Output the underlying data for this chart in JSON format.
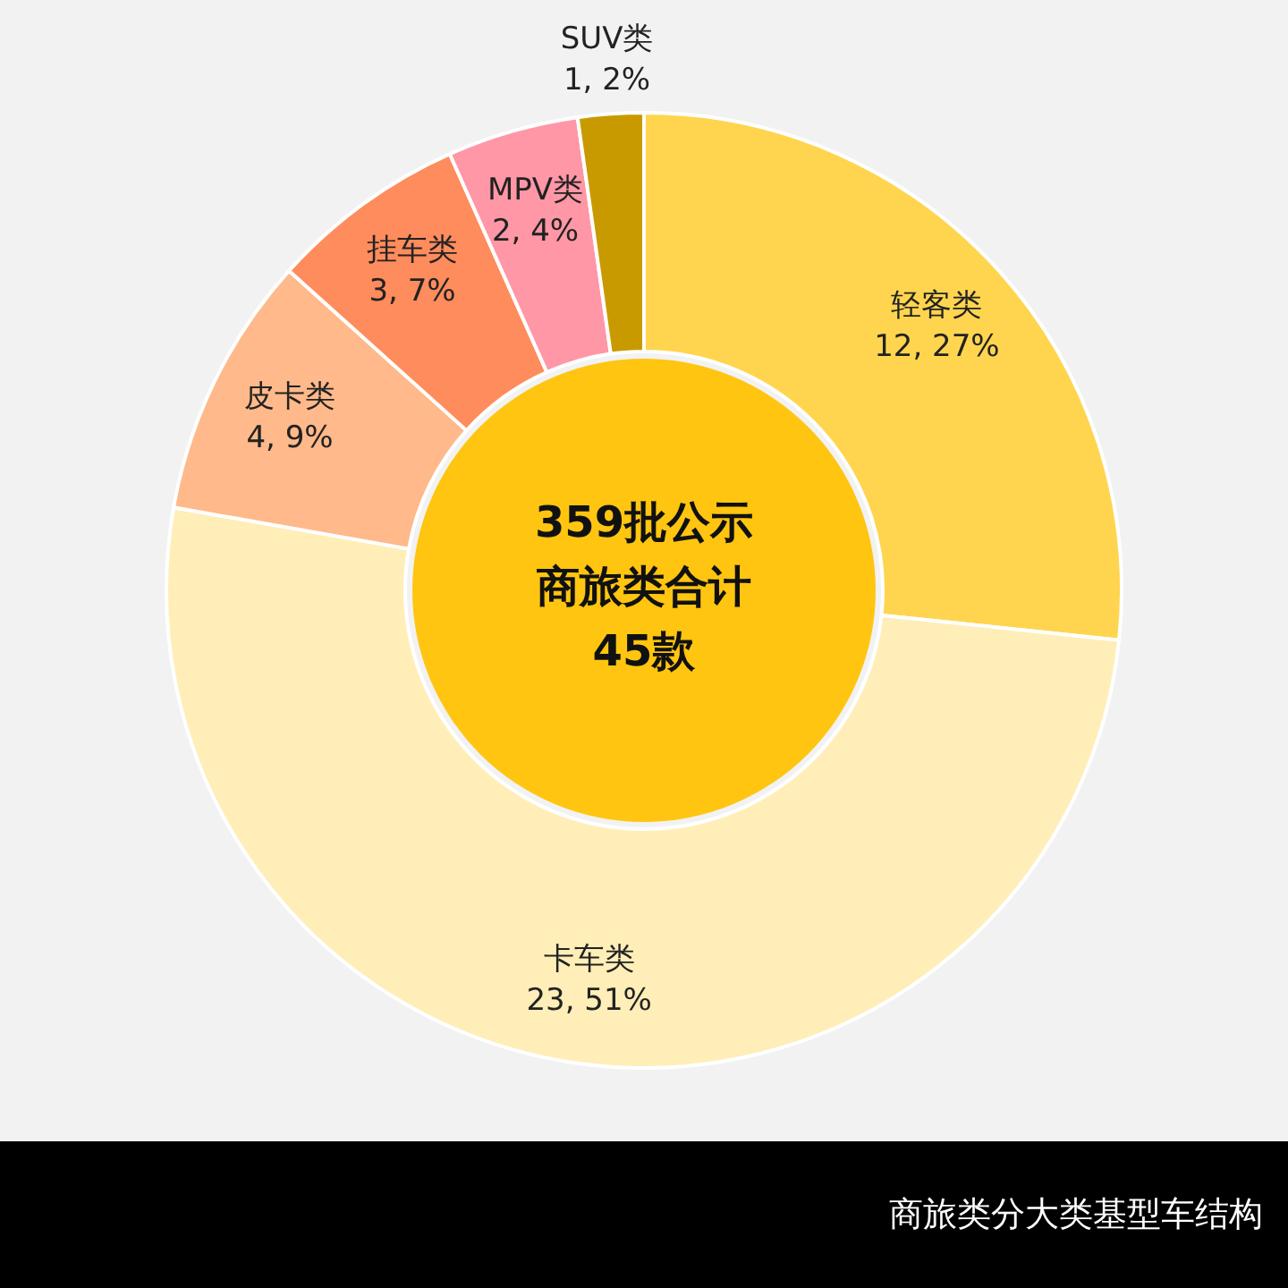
{
  "chart_data": {
    "type": "donut",
    "title": "商旅类分大类基型车结构",
    "categories": [
      "轻客类",
      "卡车类",
      "皮卡类",
      "挂车类",
      "MPV类",
      "SUV类"
    ],
    "values": [
      12,
      23,
      4,
      3,
      2,
      1
    ],
    "colors": [
      "#ffd54f",
      "#ffeeb8",
      "#ffb98a",
      "#ff8c5c",
      "#ff97a6",
      "#c99a00"
    ],
    "value_labels": [
      "12, 27%",
      "23, 51%",
      "4, 9%",
      "3, 7%",
      "2, 4%",
      "1, 2%"
    ],
    "annotations": [
      "359批公示",
      "商旅类合计",
      "45款"
    ],
    "legend": false
  }
}
